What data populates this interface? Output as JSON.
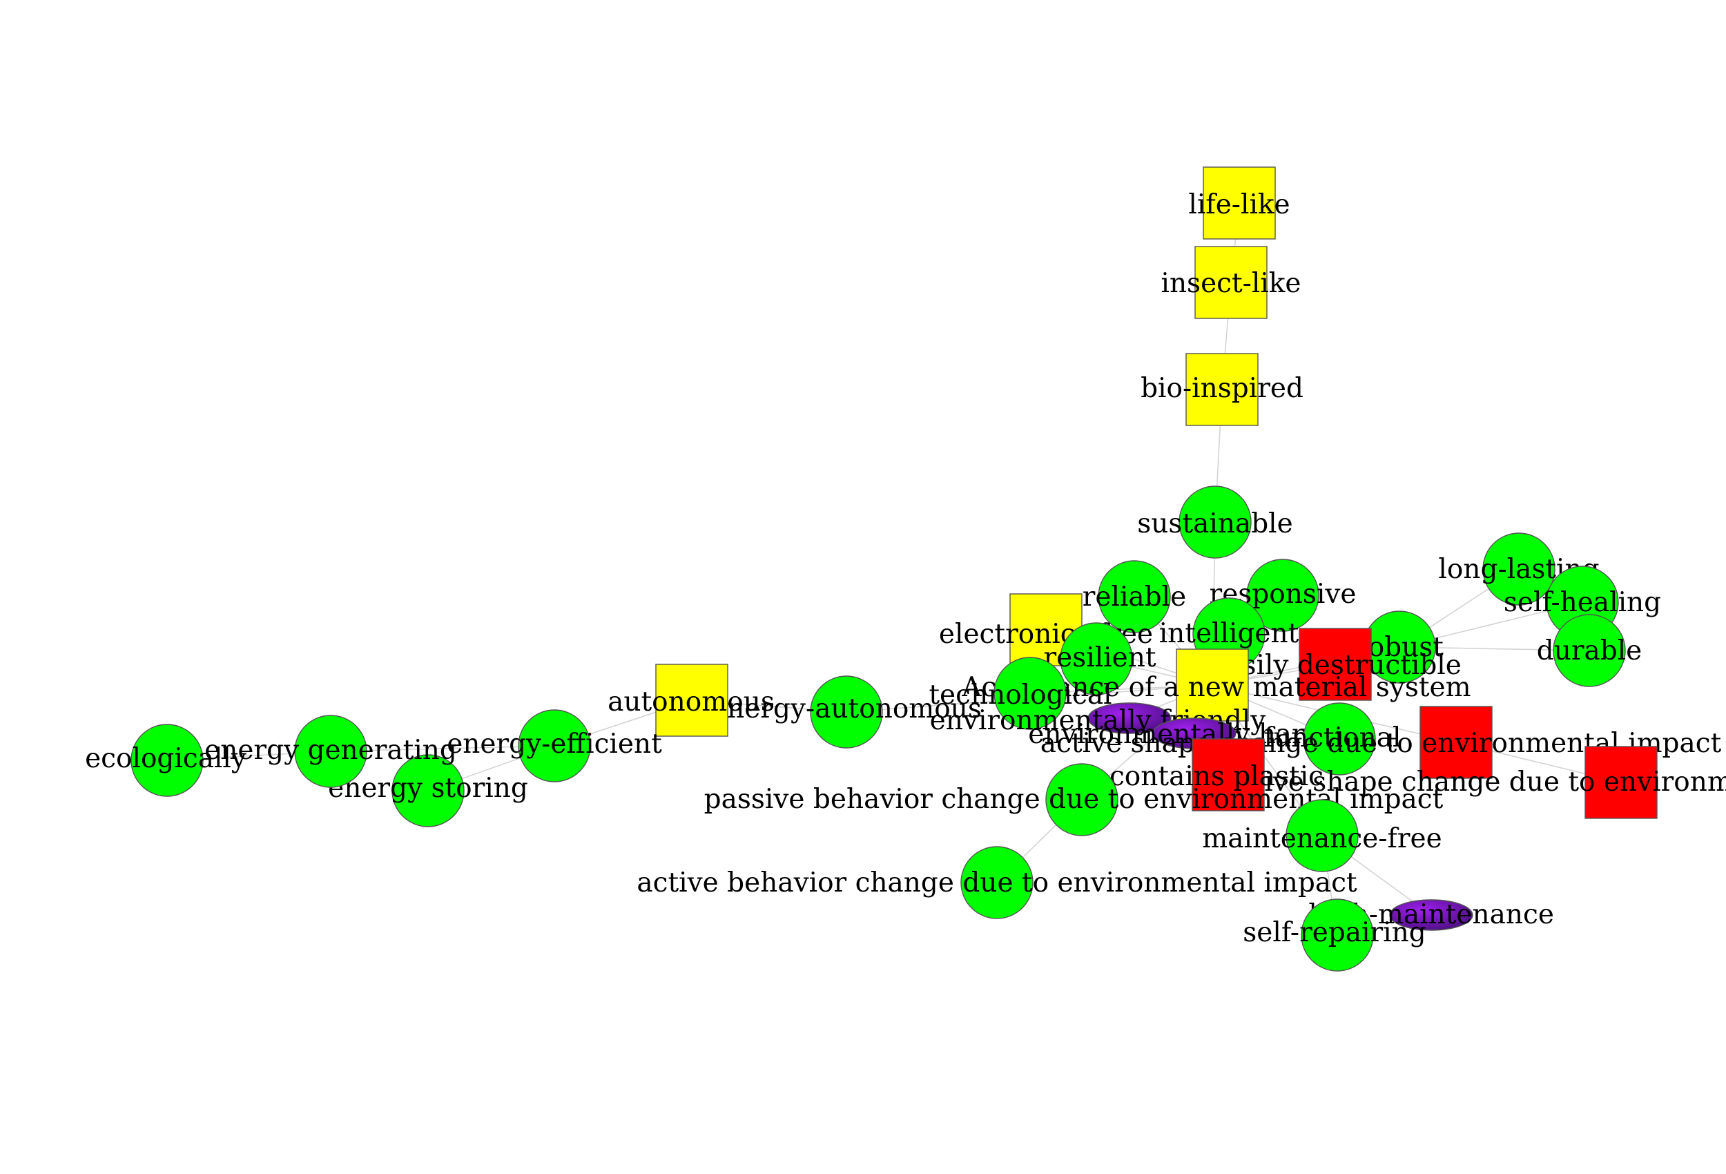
{
  "colors": {
    "background": "#ffffff",
    "edge": "#d4d4d4",
    "circle": "#00ff00",
    "square_yellow": "#ffff00",
    "square_red": "#ff0000",
    "ellipse_purple": "#7a1fc8"
  },
  "nodes": [
    {
      "id": "life_like",
      "label": "life-like",
      "shape": "square",
      "color": "yellow"
    },
    {
      "id": "insect_like",
      "label": "insect-like",
      "shape": "square",
      "color": "yellow"
    },
    {
      "id": "bio_inspired",
      "label": "bio-inspired",
      "shape": "square",
      "color": "yellow"
    },
    {
      "id": "sustainable",
      "label": "sustainable",
      "shape": "circle",
      "color": "green"
    },
    {
      "id": "long_lasting",
      "label": "long-lasting",
      "shape": "circle",
      "color": "green"
    },
    {
      "id": "self_healing",
      "label": "self-healing",
      "shape": "circle",
      "color": "green"
    },
    {
      "id": "durable",
      "label": "durable",
      "shape": "circle",
      "color": "green"
    },
    {
      "id": "robust",
      "label": "robust",
      "shape": "circle",
      "color": "green"
    },
    {
      "id": "reliable",
      "label": "reliable",
      "shape": "circle",
      "color": "green"
    },
    {
      "id": "responsive",
      "label": "responsive",
      "shape": "circle",
      "color": "green"
    },
    {
      "id": "intelligent",
      "label": "intelligent",
      "shape": "circle",
      "color": "green"
    },
    {
      "id": "electronics_free",
      "label": "electronics-free",
      "shape": "square",
      "color": "yellow"
    },
    {
      "id": "resilient",
      "label": "resilient",
      "shape": "circle",
      "color": "green"
    },
    {
      "id": "easily_destructible",
      "label": "easily destructible",
      "shape": "square",
      "color": "red"
    },
    {
      "id": "acceptance",
      "label": "Acceptance of a new material system",
      "shape": "square",
      "color": "yellow"
    },
    {
      "id": "technological",
      "label": "technological",
      "shape": "circle",
      "color": "green"
    },
    {
      "id": "environmentally_friendly",
      "label": "environmentally friendly",
      "shape": "ellipse",
      "color": "purple"
    },
    {
      "id": "environmentally_harmful",
      "label": "environmentally harmful",
      "shape": "ellipse",
      "color": "purple"
    },
    {
      "id": "functional",
      "label": "functional",
      "shape": "circle",
      "color": "green"
    },
    {
      "id": "active_shape_change",
      "label": "active shape change due to environmental impact",
      "shape": "square",
      "color": "red"
    },
    {
      "id": "passive_shape_change",
      "label": "passive shape change due to environmental impact",
      "shape": "square",
      "color": "red"
    },
    {
      "id": "contains_plastic",
      "label": "contains plastic",
      "shape": "square",
      "color": "red"
    },
    {
      "id": "passive_behavior",
      "label": "passive behavior change due to environmental impact",
      "shape": "circle",
      "color": "green"
    },
    {
      "id": "active_behavior",
      "label": "active behavior change due to environmental impact",
      "shape": "circle",
      "color": "green"
    },
    {
      "id": "maintenance_free",
      "label": "maintenance-free",
      "shape": "circle",
      "color": "green"
    },
    {
      "id": "high_maintenance",
      "label": "high-maintenance",
      "shape": "ellipse",
      "color": "purple"
    },
    {
      "id": "self_repairing",
      "label": "self-repairing",
      "shape": "circle",
      "color": "green"
    },
    {
      "id": "energy_autonomous",
      "label": "energy-autonomous",
      "shape": "circle",
      "color": "green"
    },
    {
      "id": "autonomous",
      "label": "autonomous",
      "shape": "square",
      "color": "yellow"
    },
    {
      "id": "energy_efficient",
      "label": "energy-efficient",
      "shape": "circle",
      "color": "green"
    },
    {
      "id": "energy_storing",
      "label": "energy storing",
      "shape": "circle",
      "color": "green"
    },
    {
      "id": "energy_generating",
      "label": "energy generating",
      "shape": "circle",
      "color": "green"
    },
    {
      "id": "ecologically",
      "label": "ecologically",
      "shape": "circle",
      "color": "green"
    }
  ],
  "edges": [
    [
      "life_like",
      "insect_like"
    ],
    [
      "insect_like",
      "bio_inspired"
    ],
    [
      "bio_inspired",
      "sustainable"
    ],
    [
      "sustainable",
      "acceptance"
    ],
    [
      "acceptance",
      "intelligent"
    ],
    [
      "acceptance",
      "responsive"
    ],
    [
      "acceptance",
      "reliable"
    ],
    [
      "acceptance",
      "resilient"
    ],
    [
      "acceptance",
      "electronics_free"
    ],
    [
      "acceptance",
      "technological"
    ],
    [
      "acceptance",
      "environmentally_friendly"
    ],
    [
      "acceptance",
      "environmentally_harmful"
    ],
    [
      "acceptance",
      "functional"
    ],
    [
      "acceptance",
      "easily_destructible"
    ],
    [
      "acceptance",
      "robust"
    ],
    [
      "acceptance",
      "contains_plastic"
    ],
    [
      "acceptance",
      "active_shape_change"
    ],
    [
      "acceptance",
      "passive_behavior"
    ],
    [
      "acceptance",
      "maintenance_free"
    ],
    [
      "acceptance",
      "energy_autonomous"
    ],
    [
      "robust",
      "long_lasting"
    ],
    [
      "robust",
      "self_healing"
    ],
    [
      "robust",
      "durable"
    ],
    [
      "active_shape_change",
      "passive_shape_change"
    ],
    [
      "passive_behavior",
      "active_behavior"
    ],
    [
      "maintenance_free",
      "high_maintenance"
    ],
    [
      "maintenance_free",
      "self_repairing"
    ],
    [
      "energy_autonomous",
      "autonomous"
    ],
    [
      "autonomous",
      "energy_efficient"
    ],
    [
      "energy_efficient",
      "energy_storing"
    ],
    [
      "energy_efficient",
      "energy_generating"
    ],
    [
      "energy_generating",
      "ecologically"
    ]
  ]
}
